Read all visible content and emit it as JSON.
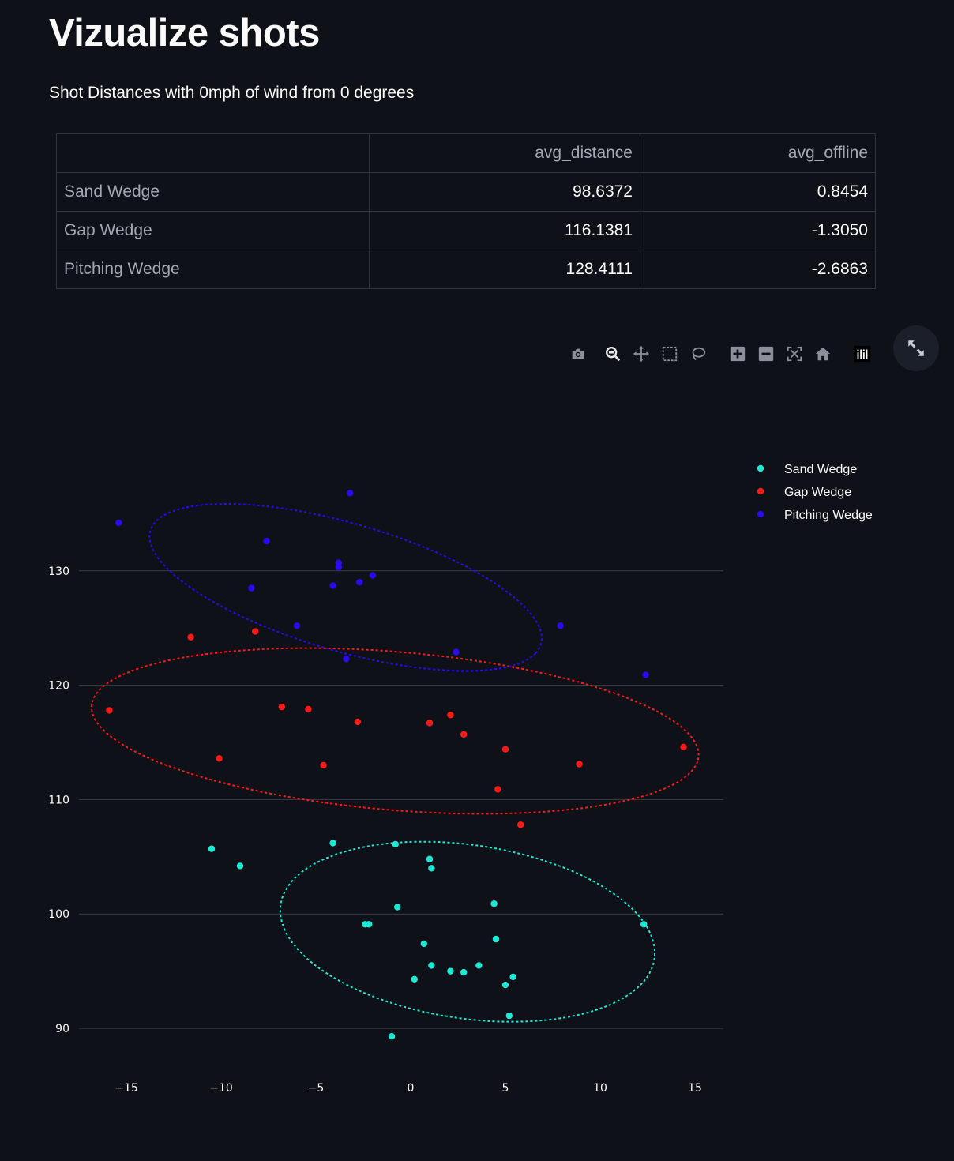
{
  "page": {
    "title": "Vizualize shots",
    "caption": "Shot Distances with 0mph of wind from 0 degrees"
  },
  "table": {
    "headers": [
      "",
      "avg_distance",
      "avg_offline"
    ],
    "rows": [
      {
        "club": "Sand Wedge",
        "avg_distance": "98.6372",
        "avg_offline": "0.8454"
      },
      {
        "club": "Gap Wedge",
        "avg_distance": "116.1381",
        "avg_offline": "-1.3050"
      },
      {
        "club": "Pitching Wedge",
        "avg_distance": "128.4111",
        "avg_offline": "-2.6863"
      }
    ]
  },
  "modebar": {
    "icons": [
      "camera-icon",
      "zoom-icon",
      "pan-icon",
      "box-select-icon",
      "lasso-select-icon",
      "zoom-in-icon",
      "zoom-out-icon",
      "autoscale-icon",
      "reset-axes-icon",
      "plotly-logo-icon"
    ],
    "fullscreen_icon": "expand-icon"
  },
  "chart_data": {
    "type": "scatter",
    "xlim": [
      -17.5,
      16.5
    ],
    "ylim": [
      86,
      144
    ],
    "xticks": [
      -15,
      -10,
      -5,
      0,
      5,
      10,
      15
    ],
    "yticks": [
      90,
      100,
      110,
      120,
      130
    ],
    "grid": "horizontal",
    "legend_position": "top-right",
    "series": [
      {
        "name": "Sand Wedge",
        "color": "#1ce8d6",
        "points": [
          [
            -10.5,
            105.7
          ],
          [
            -9,
            104.2
          ],
          [
            -4.1,
            106.2
          ],
          [
            -0.8,
            106.1
          ],
          [
            1,
            104.8
          ],
          [
            1.1,
            104
          ],
          [
            -0.7,
            100.6
          ],
          [
            4.4,
            100.9
          ],
          [
            -2.4,
            99.1
          ],
          [
            -2.2,
            99.1
          ],
          [
            12.3,
            99.1
          ],
          [
            0.7,
            97.4
          ],
          [
            4.5,
            97.8
          ],
          [
            1.1,
            95.5
          ],
          [
            2.1,
            95
          ],
          [
            2.8,
            94.9
          ],
          [
            3.6,
            95.5
          ],
          [
            0.2,
            94.3
          ],
          [
            5.4,
            94.5
          ],
          [
            5,
            93.8
          ],
          [
            5.2,
            91.1
          ],
          [
            -1,
            89.3
          ]
        ],
        "ellipse": {
          "cx": 3.0,
          "cy": 98.45,
          "rx": 10.27,
          "ry": 7.36,
          "angle_deg": -23.0
        }
      },
      {
        "name": "Gap Wedge",
        "color": "#ff1a1a",
        "points": [
          [
            -11.6,
            124.2
          ],
          [
            -8.2,
            124.7
          ],
          [
            -15.9,
            117.8
          ],
          [
            -6.8,
            118.1
          ],
          [
            -5.4,
            117.9
          ],
          [
            -2.8,
            116.8
          ],
          [
            1,
            116.7
          ],
          [
            2.1,
            117.4
          ],
          [
            2.8,
            115.7
          ],
          [
            5,
            114.4
          ],
          [
            14.4,
            114.6
          ],
          [
            -10.1,
            113.6
          ],
          [
            -4.6,
            113
          ],
          [
            8.9,
            113.1
          ],
          [
            4.6,
            110.9
          ],
          [
            5.8,
            107.8
          ]
        ],
        "ellipse": {
          "cx": -0.82,
          "cy": 116.0,
          "rx": 16.18,
          "ry": 6.87,
          "angle_deg": -9.03
        }
      },
      {
        "name": "Pitching Wedge",
        "color": "#2a0bf1",
        "points": [
          [
            -3.2,
            136.8
          ],
          [
            -15.4,
            134.2
          ],
          [
            -7.6,
            132.6
          ],
          [
            -3.8,
            130.7
          ],
          [
            -3.8,
            130.3
          ],
          [
            -2.0,
            129.6
          ],
          [
            -2.7,
            129
          ],
          [
            -4.1,
            128.7
          ],
          [
            -8.4,
            128.5
          ],
          [
            -6,
            125.2
          ],
          [
            7.9,
            125.2
          ],
          [
            2.4,
            122.9
          ],
          [
            -3.4,
            122.3
          ],
          [
            12.4,
            120.9
          ]
        ],
        "ellipse": {
          "cx": -3.43,
          "cy": 128.55,
          "rx": 11.56,
          "ry": 5.18,
          "angle_deg": -29.89
        }
      }
    ]
  }
}
